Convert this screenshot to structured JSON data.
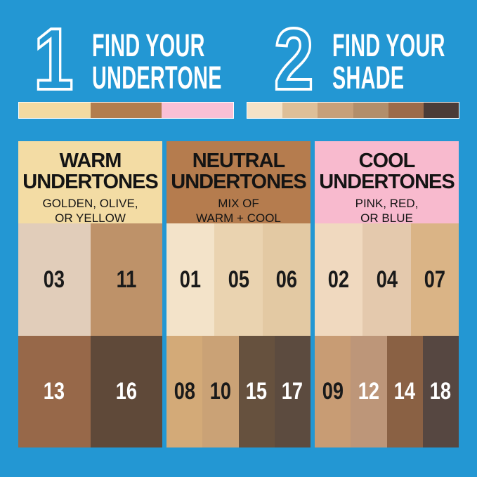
{
  "background_color": "#2397D3",
  "steps": [
    {
      "number": "1",
      "line1": "FIND YOUR",
      "line2": "UNDERTONE"
    },
    {
      "number": "2",
      "line1": "FIND YOUR",
      "line2": "SHADE"
    }
  ],
  "undertone_bar": {
    "colors": [
      "#F3DAA1",
      "#B27D4E",
      "#FAC0D5"
    ]
  },
  "shade_bar": {
    "colors": [
      "#F4E2C7",
      "#DEBF98",
      "#C7A07A",
      "#B28E6B",
      "#9C6B4A",
      "#4B3C38"
    ]
  },
  "columns": [
    {
      "id": "warm",
      "title_line1": "WARM",
      "title_line2": "UNDERTONES",
      "subtitle_line1": "GOLDEN, OLIVE,",
      "subtitle_line2": "OR YELLOW",
      "header_bg": "#F3DCA4",
      "light_swatches": [
        {
          "label": "03",
          "bg": "#E1CDBA",
          "fg": "#1A1A1A"
        },
        {
          "label": "11",
          "bg": "#BE9269",
          "fg": "#1A1A1A"
        }
      ],
      "dark_swatches": [
        {
          "label": "13",
          "bg": "#976849",
          "fg": "#FFFFFF"
        },
        {
          "label": "16",
          "bg": "#5F4939",
          "fg": "#FFFFFF"
        }
      ]
    },
    {
      "id": "neutral",
      "title_line1": "NEUTRAL",
      "title_line2": "UNDERTONES",
      "subtitle_line1": "MIX OF",
      "subtitle_line2": "WARM + COOL",
      "header_bg": "#B57C4E",
      "light_swatches": [
        {
          "label": "01",
          "bg": "#F3E3C9",
          "fg": "#1A1A1A"
        },
        {
          "label": "05",
          "bg": "#EAD3B0",
          "fg": "#1A1A1A"
        },
        {
          "label": "06",
          "bg": "#E3C9A3",
          "fg": "#1A1A1A"
        }
      ],
      "dark_swatches": [
        {
          "label": "08",
          "bg": "#D3AA78",
          "fg": "#1A1A1A"
        },
        {
          "label": "10",
          "bg": "#CAA276",
          "fg": "#1A1A1A"
        },
        {
          "label": "15",
          "bg": "#66513E",
          "fg": "#FFFFFF"
        },
        {
          "label": "17",
          "bg": "#5C4B3F",
          "fg": "#FFFFFF"
        }
      ]
    },
    {
      "id": "cool",
      "title_line1": "COOL",
      "title_line2": "UNDERTONES",
      "subtitle_line1": "PINK, RED,",
      "subtitle_line2": "OR BLUE",
      "header_bg": "#F8BACE",
      "light_swatches": [
        {
          "label": "02",
          "bg": "#F0D9BF",
          "fg": "#1A1A1A"
        },
        {
          "label": "04",
          "bg": "#E4C9AD",
          "fg": "#1A1A1A"
        },
        {
          "label": "07",
          "bg": "#DAB486",
          "fg": "#1A1A1A"
        }
      ],
      "dark_swatches": [
        {
          "label": "09",
          "bg": "#C89C74",
          "fg": "#1A1A1A"
        },
        {
          "label": "12",
          "bg": "#BD9679",
          "fg": "#FFFFFF"
        },
        {
          "label": "14",
          "bg": "#8A6144",
          "fg": "#FFFFFF"
        },
        {
          "label": "18",
          "bg": "#564741",
          "fg": "#FFFFFF"
        }
      ]
    }
  ]
}
